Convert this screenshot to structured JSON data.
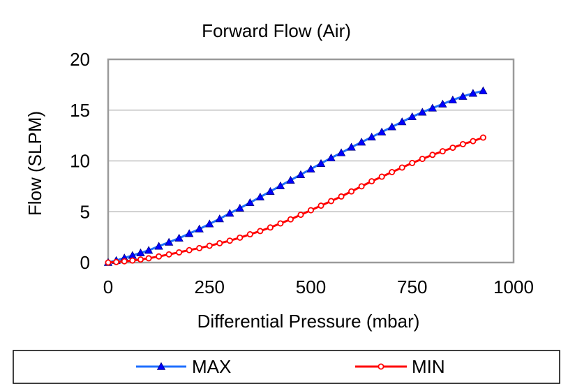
{
  "chart_data": {
    "type": "line",
    "title": "Forward Flow (Air)",
    "xlabel": "Differential Pressure (mbar)",
    "ylabel": "Flow (SLPM)",
    "xlim": [
      0,
      1000
    ],
    "ylim": [
      0,
      20
    ],
    "xticks": [
      "0",
      "250",
      "500",
      "750",
      "1000"
    ],
    "yticks": [
      "0",
      "5",
      "10",
      "15",
      "20"
    ],
    "grid": "horizontal",
    "legend_position": "bottom",
    "series": [
      {
        "name": "MAX",
        "color": "#0000ff",
        "line_color": "#1f6fff",
        "marker": "triangle",
        "x": [
          0,
          20,
          40,
          60,
          80,
          100,
          125,
          150,
          175,
          200,
          225,
          250,
          275,
          300,
          325,
          350,
          375,
          400,
          425,
          450,
          475,
          500,
          525,
          550,
          575,
          600,
          625,
          650,
          675,
          700,
          725,
          750,
          775,
          800,
          825,
          850,
          875,
          900,
          925
        ],
        "y": [
          0,
          0.2,
          0.45,
          0.7,
          0.95,
          1.2,
          1.6,
          2.0,
          2.4,
          2.85,
          3.3,
          3.8,
          4.3,
          4.85,
          5.35,
          5.9,
          6.45,
          7.0,
          7.55,
          8.1,
          8.65,
          9.2,
          9.75,
          10.3,
          10.8,
          11.35,
          11.85,
          12.35,
          12.85,
          13.35,
          13.85,
          14.35,
          14.8,
          15.2,
          15.6,
          16.0,
          16.35,
          16.65,
          16.9
        ]
      },
      {
        "name": "MIN",
        "color": "#ff0000",
        "line_color": "#ff0000",
        "marker": "circle",
        "x": [
          0,
          20,
          40,
          60,
          80,
          100,
          125,
          150,
          175,
          200,
          225,
          250,
          275,
          300,
          325,
          350,
          375,
          400,
          425,
          450,
          475,
          500,
          525,
          550,
          575,
          600,
          625,
          650,
          675,
          700,
          725,
          750,
          775,
          800,
          825,
          850,
          875,
          900,
          925
        ],
        "y": [
          0,
          0.05,
          0.12,
          0.2,
          0.3,
          0.42,
          0.6,
          0.8,
          1.0,
          1.22,
          1.42,
          1.65,
          1.9,
          2.15,
          2.45,
          2.78,
          3.1,
          3.45,
          3.85,
          4.25,
          4.7,
          5.15,
          5.6,
          6.05,
          6.5,
          7.0,
          7.5,
          8.0,
          8.45,
          8.9,
          9.35,
          9.8,
          10.2,
          10.6,
          10.95,
          11.3,
          11.65,
          11.95,
          12.3
        ]
      }
    ]
  }
}
